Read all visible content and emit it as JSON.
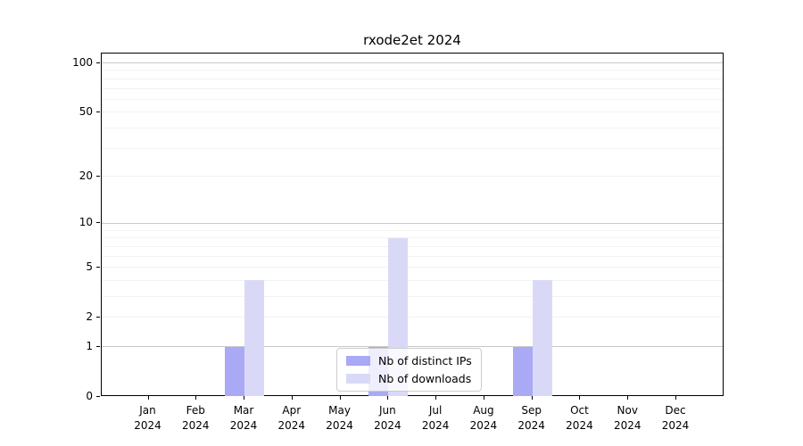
{
  "chart_data": {
    "type": "bar",
    "title": "rxode2et 2024",
    "categories": [
      "Jan",
      "Feb",
      "Mar",
      "Apr",
      "May",
      "Jun",
      "Jul",
      "Aug",
      "Sep",
      "Oct",
      "Nov",
      "Dec"
    ],
    "category_sublabel": "2024",
    "series": [
      {
        "name": "Nb of distinct IPs",
        "color": "#a9a9f5",
        "values": [
          0,
          0,
          1,
          0,
          0,
          1,
          0,
          0,
          1,
          0,
          0,
          0
        ]
      },
      {
        "name": "Nb of downloads",
        "color": "#d9d9f7",
        "values": [
          0,
          0,
          4,
          0,
          0,
          8,
          0,
          0,
          4,
          0,
          0,
          0
        ]
      }
    ],
    "xlabel": "",
    "ylabel": "",
    "yscale": "log1p",
    "ylim": [
      0,
      114
    ],
    "yticks": [
      100,
      50,
      20,
      10,
      5,
      2,
      1,
      0
    ],
    "grid": {
      "on": true,
      "major_values": [
        1,
        10,
        100
      ],
      "minor_values": [
        2,
        3,
        4,
        5,
        6,
        7,
        8,
        9,
        20,
        30,
        40,
        50,
        60,
        70,
        80,
        90
      ]
    },
    "legend_position": "inside-bottom-center"
  },
  "colors": {
    "bar_distinct_ips": "#a9a9f5",
    "bar_downloads": "#d9d9f7",
    "grid_major": "#c9c9c9",
    "grid_minor": "#f2f2f2",
    "axis": "#000000",
    "legend_border": "#cccccc"
  }
}
